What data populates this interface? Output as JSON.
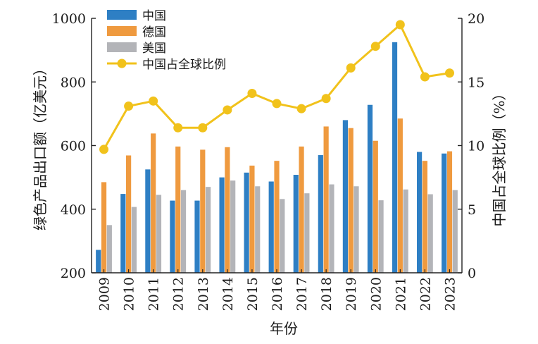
{
  "chart_data": {
    "type": "bar",
    "categories": [
      "2009",
      "2010",
      "2011",
      "2012",
      "2013",
      "2014",
      "2015",
      "2016",
      "2017",
      "2018",
      "2019",
      "2020",
      "2021",
      "2022",
      "2023"
    ],
    "xlabel": "年份",
    "ylabel": "绿色产品出口额（亿美元）",
    "y2label": "中国占全球比例（%）",
    "ylim": [
      200,
      1000
    ],
    "y2lim": [
      0,
      20
    ],
    "yticks": [
      200,
      400,
      600,
      800,
      1000
    ],
    "y2ticks": [
      0,
      5,
      10,
      15,
      20
    ],
    "legend_position": "top-left",
    "grid": false,
    "series": [
      {
        "name": "中国",
        "type": "bar",
        "axis": "left",
        "color": "#2e7fc4",
        "values": [
          272,
          448,
          525,
          427,
          427,
          500,
          515,
          487,
          508,
          570,
          680,
          728,
          925,
          580,
          575
        ]
      },
      {
        "name": "德国",
        "type": "bar",
        "axis": "left",
        "color": "#ef9a3f",
        "values": [
          485,
          569,
          638,
          597,
          587,
          595,
          537,
          552,
          597,
          660,
          655,
          615,
          685,
          552,
          582
        ]
      },
      {
        "name": "美国",
        "type": "bar",
        "axis": "left",
        "color": "#b3b4b8",
        "values": [
          350,
          407,
          445,
          460,
          470,
          490,
          472,
          432,
          450,
          478,
          472,
          428,
          462,
          447,
          460
        ]
      },
      {
        "name": "中国占全球比例",
        "type": "line",
        "axis": "right",
        "color": "#f1c21b",
        "values": [
          9.7,
          13.1,
          13.5,
          11.4,
          11.4,
          12.8,
          14.1,
          13.3,
          12.9,
          13.7,
          16.1,
          17.8,
          19.5,
          15.4,
          15.7
        ]
      }
    ]
  }
}
